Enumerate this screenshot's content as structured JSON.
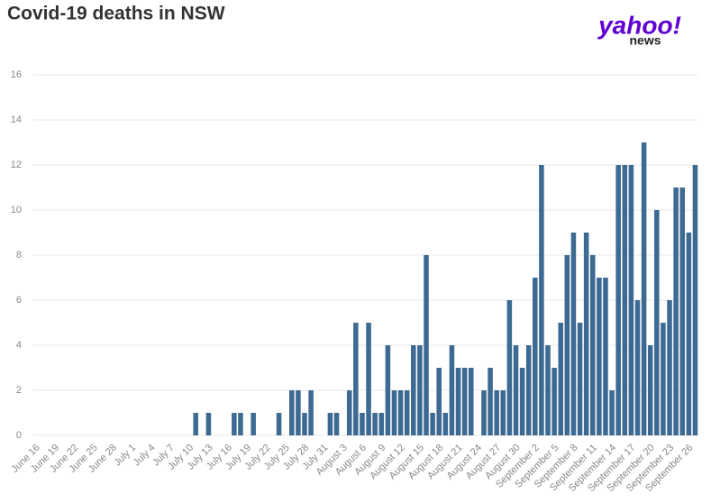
{
  "chart_data": {
    "type": "bar",
    "title": "Covid-19 deaths in NSW",
    "logo": {
      "brand": "yahoo!",
      "sub": "news"
    },
    "categories": [
      "June 16",
      null,
      null,
      "June 19",
      null,
      null,
      "June 22",
      null,
      null,
      "June 25",
      null,
      null,
      "June 28",
      null,
      null,
      "July 1",
      null,
      null,
      "July 4",
      null,
      null,
      "July 7",
      null,
      null,
      "July 10",
      null,
      null,
      "July 13",
      null,
      null,
      "July 16",
      null,
      null,
      "July 19",
      null,
      null,
      "July 22",
      null,
      null,
      "July 25",
      null,
      null,
      "July 28",
      null,
      null,
      "July 31",
      null,
      null,
      "August 3",
      null,
      null,
      "August 6",
      null,
      null,
      "August 9",
      null,
      null,
      "August 12",
      null,
      null,
      "August 15",
      null,
      null,
      "August 18",
      null,
      null,
      "August 21",
      null,
      null,
      "August 24",
      null,
      null,
      "August 27",
      null,
      null,
      "August 30",
      null,
      null,
      "September 2",
      null,
      null,
      "September 5",
      null,
      null,
      "September 8",
      null,
      null,
      "September 11",
      null,
      null,
      "September 14",
      null,
      null,
      "September 17",
      null,
      null,
      "September 20",
      null,
      null,
      "September 23",
      null,
      null,
      "September 26",
      null
    ],
    "values": [
      0,
      0,
      0,
      0,
      0,
      0,
      0,
      0,
      0,
      0,
      0,
      0,
      0,
      0,
      0,
      0,
      0,
      0,
      0,
      0,
      0,
      0,
      0,
      0,
      0,
      1,
      0,
      1,
      0,
      0,
      0,
      1,
      1,
      0,
      1,
      0,
      0,
      0,
      1,
      0,
      2,
      2,
      1,
      2,
      0,
      0,
      1,
      1,
      0,
      2,
      5,
      1,
      5,
      1,
      1,
      4,
      2,
      2,
      2,
      4,
      4,
      8,
      1,
      3,
      1,
      4,
      3,
      3,
      3,
      0,
      2,
      3,
      2,
      2,
      6,
      4,
      3,
      4,
      7,
      12,
      4,
      3,
      5,
      8,
      9,
      5,
      9,
      8,
      7,
      7,
      2,
      12,
      12,
      12,
      6,
      13,
      4,
      10,
      5,
      6,
      11,
      11,
      9,
      12
    ],
    "color": "#3d6a93",
    "ylim": [
      0,
      16
    ],
    "yticks": [
      0,
      2,
      4,
      6,
      8,
      10,
      12,
      14,
      16
    ],
    "grid": true
  }
}
